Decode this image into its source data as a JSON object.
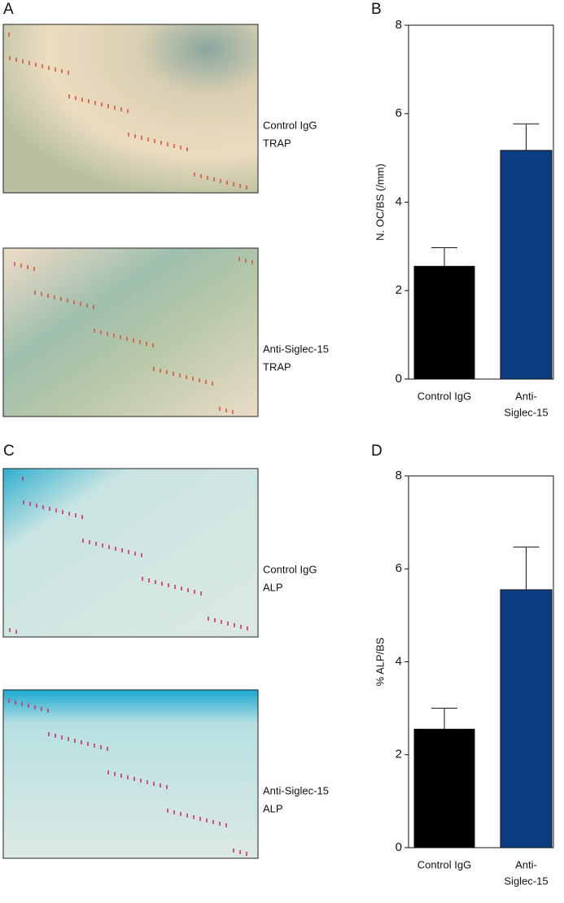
{
  "images": [
    {
      "panel": "A",
      "items": [
        {
          "caption": [
            "Control IgG",
            "TRAP"
          ]
        },
        {
          "caption": [
            "Anti-Siglec-15",
            "TRAP"
          ]
        }
      ]
    },
    {
      "panel": "C",
      "items": [
        {
          "caption": [
            "Control IgG",
            "ALP"
          ]
        },
        {
          "caption": [
            "Anti-Siglec-15",
            "ALP"
          ]
        }
      ]
    }
  ],
  "chart_data": [
    {
      "type": "bar",
      "panel": "B",
      "ylabel": "N. OC/BS (/mm)",
      "categories": [
        [
          "Control IgG"
        ],
        [
          "Anti-",
          "Siglec-15"
        ]
      ],
      "values": [
        2.55,
        5.17
      ],
      "errors": [
        0.42,
        0.6
      ],
      "colors": [
        "#000000",
        "#0c3c82"
      ],
      "ylim": [
        0,
        8
      ],
      "yticks": [
        0,
        2,
        4,
        6,
        8
      ]
    },
    {
      "type": "bar",
      "panel": "D",
      "ylabel": "% ALP/BS",
      "categories": [
        [
          "Control IgG"
        ],
        [
          "Anti-",
          "Siglec-15"
        ]
      ],
      "values": [
        2.55,
        5.55
      ],
      "errors": [
        0.45,
        0.92
      ],
      "colors": [
        "#000000",
        "#0c3c82"
      ],
      "ylim": [
        0,
        8
      ],
      "yticks": [
        0,
        2,
        4,
        6,
        8
      ]
    }
  ]
}
